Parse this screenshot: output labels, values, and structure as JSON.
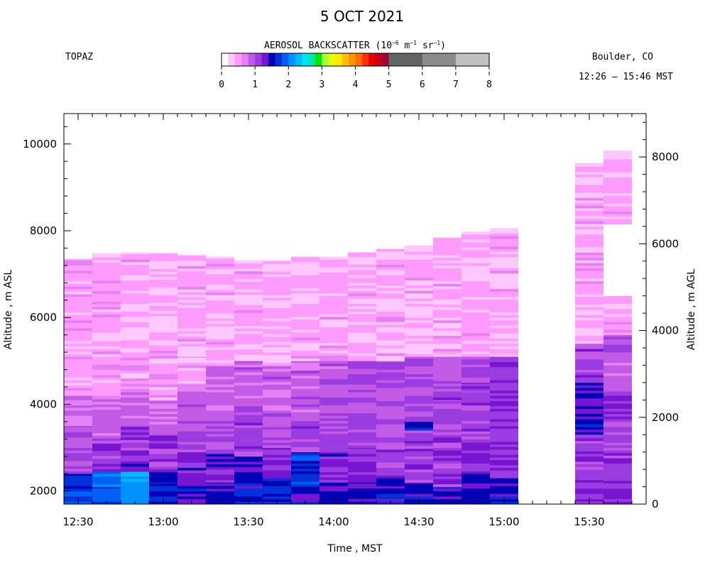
{
  "chart_data": {
    "type": "heatmap",
    "title": "5 OCT 2021",
    "instrument": "TOPAZ",
    "location": "Boulder, CO",
    "time_range": "12:26 – 15:46 MST",
    "colorbar": {
      "title_prefix": "AEROSOL BACKSCATTER (10",
      "title_exp1": "−6",
      "title_mid1": " m",
      "title_exp2": "−1",
      "title_mid2": " sr",
      "title_exp3": "−1",
      "title_suffix": ")",
      "range": [
        0,
        8
      ],
      "ticks": [
        "0",
        "1",
        "2",
        "3",
        "4",
        "5",
        "6",
        "7",
        "8"
      ],
      "colors": [
        {
          "from": 0.0,
          "to": 0.2,
          "color": "#ffffff"
        },
        {
          "from": 0.2,
          "to": 0.4,
          "color": "#ffc8ff"
        },
        {
          "from": 0.4,
          "to": 0.6,
          "color": "#ff9bff"
        },
        {
          "from": 0.6,
          "to": 0.8,
          "color": "#e680f5"
        },
        {
          "from": 0.8,
          "to": 1.0,
          "color": "#c35ae6"
        },
        {
          "from": 1.0,
          "to": 1.2,
          "color": "#9b3ce1"
        },
        {
          "from": 1.2,
          "to": 1.4,
          "color": "#7814d2"
        },
        {
          "from": 1.4,
          "to": 1.6,
          "color": "#0000b4"
        },
        {
          "from": 1.6,
          "to": 1.8,
          "color": "#0032dc"
        },
        {
          "from": 1.8,
          "to": 2.0,
          "color": "#005ff5"
        },
        {
          "from": 2.0,
          "to": 2.2,
          "color": "#0091ff"
        },
        {
          "from": 2.2,
          "to": 2.4,
          "color": "#00b9ff"
        },
        {
          "from": 2.4,
          "to": 2.6,
          "color": "#00e1ff"
        },
        {
          "from": 2.6,
          "to": 2.8,
          "color": "#00e6aa"
        },
        {
          "from": 2.8,
          "to": 3.0,
          "color": "#00e600"
        },
        {
          "from": 3.0,
          "to": 3.2,
          "color": "#aaff3c"
        },
        {
          "from": 3.2,
          "to": 3.4,
          "color": "#e6ff00"
        },
        {
          "from": 3.4,
          "to": 3.6,
          "color": "#ffe600"
        },
        {
          "from": 3.6,
          "to": 3.8,
          "color": "#ffbe00"
        },
        {
          "from": 3.8,
          "to": 4.0,
          "color": "#ff9600"
        },
        {
          "from": 4.0,
          "to": 4.2,
          "color": "#ff6e00"
        },
        {
          "from": 4.2,
          "to": 4.4,
          "color": "#ff3200"
        },
        {
          "from": 4.4,
          "to": 4.6,
          "color": "#e60000"
        },
        {
          "from": 4.6,
          "to": 4.8,
          "color": "#c80014"
        },
        {
          "from": 4.8,
          "to": 5.0,
          "color": "#a0003c"
        },
        {
          "from": 5.0,
          "to": 6.0,
          "color": "#646464"
        },
        {
          "from": 6.0,
          "to": 7.0,
          "color": "#8c8c8c"
        },
        {
          "from": 7.0,
          "to": 8.0,
          "color": "#c0c0c0"
        }
      ]
    },
    "xlabel": "Time , MST",
    "ylabel_left": "Altitude , m ASL",
    "ylabel_right": "Altitude , m AGL",
    "xlim_min": [
      745,
      950
    ],
    "ylim_left": [
      1700,
      10700
    ],
    "ylim_right": [
      0,
      9000
    ],
    "x_ticks": [
      "12:30",
      "13:00",
      "13:30",
      "14:00",
      "14:30",
      "15:00",
      "15:30"
    ],
    "x_tick_values_min": [
      750,
      780,
      810,
      840,
      870,
      900,
      930
    ],
    "y_ticks_left": [
      "2000",
      "4000",
      "6000",
      "8000",
      "10000"
    ],
    "y_tick_values_left": [
      2000,
      4000,
      6000,
      8000,
      10000
    ],
    "y_ticks_right": [
      "0",
      "2000",
      "4000",
      "6000",
      "8000"
    ],
    "y_tick_values_right": [
      0,
      2000,
      4000,
      6000,
      8000
    ],
    "profiles": [
      {
        "start_min": 745,
        "end_min": 755,
        "top_m": 7350,
        "layers": [
          [
            1700,
            2000,
            1.75
          ],
          [
            2000,
            2400,
            1.55
          ],
          [
            2400,
            3000,
            1.05
          ],
          [
            3000,
            3500,
            0.9
          ],
          [
            3500,
            4200,
            0.8
          ],
          [
            4200,
            7350,
            0.5
          ]
        ]
      },
      {
        "start_min": 755,
        "end_min": 765,
        "top_m": 7480,
        "layers": [
          [
            1700,
            2100,
            1.85
          ],
          [
            2100,
            2450,
            1.95
          ],
          [
            2450,
            3100,
            1.1
          ],
          [
            3100,
            3700,
            0.9
          ],
          [
            3700,
            4200,
            0.8
          ],
          [
            4200,
            5500,
            0.5
          ],
          [
            5500,
            5650,
            0.1
          ],
          [
            5650,
            7480,
            0.5
          ]
        ]
      },
      {
        "start_min": 765,
        "end_min": 775,
        "top_m": 7500,
        "layers": [
          [
            1700,
            2100,
            2.1
          ],
          [
            2100,
            2450,
            2.2
          ],
          [
            2450,
            2700,
            1.3
          ],
          [
            2700,
            3500,
            1.1
          ],
          [
            3500,
            4300,
            0.85
          ],
          [
            4300,
            5200,
            0.5
          ],
          [
            5200,
            5300,
            0.1
          ],
          [
            5300,
            7500,
            0.45
          ]
        ]
      },
      {
        "start_min": 775,
        "end_min": 785,
        "top_m": 7480,
        "layers": [
          [
            1700,
            2200,
            1.6
          ],
          [
            2200,
            2500,
            1.4
          ],
          [
            2500,
            3300,
            1.1
          ],
          [
            3300,
            4100,
            0.8
          ],
          [
            4100,
            5700,
            0.5
          ],
          [
            5700,
            5800,
            0.1
          ],
          [
            5800,
            7480,
            0.45
          ]
        ]
      },
      {
        "start_min": 785,
        "end_min": 795,
        "top_m": 7450,
        "layers": [
          [
            1700,
            2300,
            1.45
          ],
          [
            2300,
            2900,
            1.25
          ],
          [
            2900,
            3700,
            1.0
          ],
          [
            3700,
            4300,
            0.85
          ],
          [
            4300,
            5100,
            0.5
          ],
          [
            5100,
            5450,
            0.3
          ],
          [
            5450,
            7450,
            0.45
          ]
        ]
      },
      {
        "start_min": 795,
        "end_min": 805,
        "top_m": 7400,
        "layers": [
          [
            1700,
            2200,
            1.45
          ],
          [
            2200,
            2900,
            1.3
          ],
          [
            2900,
            3800,
            1.0
          ],
          [
            3800,
            4900,
            0.85
          ],
          [
            4900,
            7400,
            0.45
          ]
        ]
      },
      {
        "start_min": 805,
        "end_min": 815,
        "top_m": 7320,
        "layers": [
          [
            1700,
            2200,
            1.55
          ],
          [
            2200,
            2800,
            1.35
          ],
          [
            2800,
            3900,
            1.05
          ],
          [
            3900,
            5000,
            0.9
          ],
          [
            5000,
            5150,
            0.2
          ],
          [
            5150,
            7320,
            0.45
          ]
        ]
      },
      {
        "start_min": 815,
        "end_min": 825,
        "top_m": 7320,
        "layers": [
          [
            1700,
            2300,
            1.5
          ],
          [
            2300,
            3000,
            1.25
          ],
          [
            3000,
            3800,
            1.0
          ],
          [
            3800,
            4900,
            0.85
          ],
          [
            4900,
            7320,
            0.45
          ]
        ]
      },
      {
        "start_min": 825,
        "end_min": 835,
        "top_m": 7400,
        "layers": [
          [
            1700,
            2100,
            1.55
          ],
          [
            2100,
            2900,
            1.7
          ],
          [
            2900,
            3700,
            1.05
          ],
          [
            3700,
            5000,
            0.9
          ],
          [
            5000,
            7400,
            0.45
          ]
        ]
      },
      {
        "start_min": 835,
        "end_min": 845,
        "top_m": 7400,
        "layers": [
          [
            1700,
            2200,
            1.5
          ],
          [
            2200,
            2900,
            1.25
          ],
          [
            2900,
            3800,
            1.0
          ],
          [
            3800,
            5000,
            0.95
          ],
          [
            5000,
            7400,
            0.45
          ]
        ]
      },
      {
        "start_min": 845,
        "end_min": 855,
        "top_m": 7500,
        "layers": [
          [
            1700,
            2200,
            1.45
          ],
          [
            2200,
            3000,
            1.2
          ],
          [
            3000,
            3800,
            1.05
          ],
          [
            3800,
            5000,
            1.0
          ],
          [
            5000,
            7500,
            0.45
          ]
        ]
      },
      {
        "start_min": 855,
        "end_min": 865,
        "top_m": 7580,
        "layers": [
          [
            1700,
            2300,
            1.45
          ],
          [
            2300,
            3000,
            1.1
          ],
          [
            3000,
            3900,
            0.95
          ],
          [
            3900,
            5000,
            1.0
          ],
          [
            5000,
            7580,
            0.45
          ]
        ]
      },
      {
        "start_min": 865,
        "end_min": 875,
        "top_m": 7660,
        "layers": [
          [
            1700,
            2200,
            1.5
          ],
          [
            2200,
            3400,
            1.1
          ],
          [
            3400,
            3600,
            1.5
          ],
          [
            3600,
            4400,
            1.0
          ],
          [
            4400,
            5100,
            0.95
          ],
          [
            5100,
            6000,
            0.45
          ],
          [
            6000,
            6200,
            0.1
          ],
          [
            6200,
            7660,
            0.45
          ]
        ]
      },
      {
        "start_min": 875,
        "end_min": 885,
        "top_m": 7840,
        "layers": [
          [
            1700,
            2100,
            1.5
          ],
          [
            2100,
            3300,
            1.1
          ],
          [
            3300,
            4100,
            0.95
          ],
          [
            4100,
            4300,
            1.2
          ],
          [
            4300,
            5100,
            0.95
          ],
          [
            5100,
            7840,
            0.45
          ]
        ]
      },
      {
        "start_min": 885,
        "end_min": 895,
        "top_m": 7980,
        "layers": [
          [
            1700,
            2400,
            1.45
          ],
          [
            2400,
            3200,
            1.15
          ],
          [
            3200,
            4300,
            1.05
          ],
          [
            4300,
            4500,
            1.3
          ],
          [
            4500,
            5100,
            1.0
          ],
          [
            5100,
            7980,
            0.45
          ]
        ]
      },
      {
        "start_min": 895,
        "end_min": 905,
        "top_m": 8060,
        "layers": [
          [
            1700,
            2300,
            1.5
          ],
          [
            2300,
            3600,
            1.2
          ],
          [
            3600,
            5100,
            1.2
          ],
          [
            5100,
            7200,
            0.45
          ],
          [
            7200,
            7400,
            0.1
          ],
          [
            7400,
            8060,
            0.45
          ]
        ]
      },
      {
        "start_min": 925,
        "end_min": 935,
        "top_m": 9550,
        "layers": [
          [
            1700,
            2200,
            1.2
          ],
          [
            2200,
            3300,
            1.1
          ],
          [
            3300,
            4500,
            1.45
          ],
          [
            4500,
            5400,
            1.05
          ],
          [
            5400,
            9550,
            0.45
          ]
        ]
      },
      {
        "start_min": 935,
        "end_min": 945,
        "top_m": 9850,
        "layers": [
          [
            1700,
            2400,
            1.2
          ],
          [
            2400,
            3600,
            1.1
          ],
          [
            3600,
            4300,
            1.2
          ],
          [
            4300,
            5600,
            0.95
          ],
          [
            5600,
            6500,
            0.45
          ],
          [
            6500,
            8150,
            0.0
          ],
          [
            8150,
            9850,
            0.45
          ]
        ]
      }
    ]
  }
}
